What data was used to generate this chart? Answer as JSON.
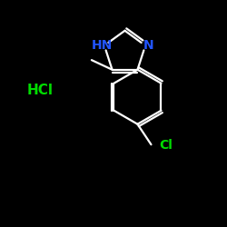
{
  "background_color": "#000000",
  "bond_color": "#ffffff",
  "hn_color": "#2255ff",
  "n_color": "#2255ff",
  "hcl_color": "#00dd00",
  "cl_color": "#00dd00",
  "hn_label": "HN",
  "n_label": "N",
  "hcl_label": "HCl",
  "cl_label": "Cl",
  "figsize": [
    2.5,
    2.5
  ],
  "dpi": 100,
  "xlim": [
    0,
    10
  ],
  "ylim": [
    0,
    10
  ]
}
